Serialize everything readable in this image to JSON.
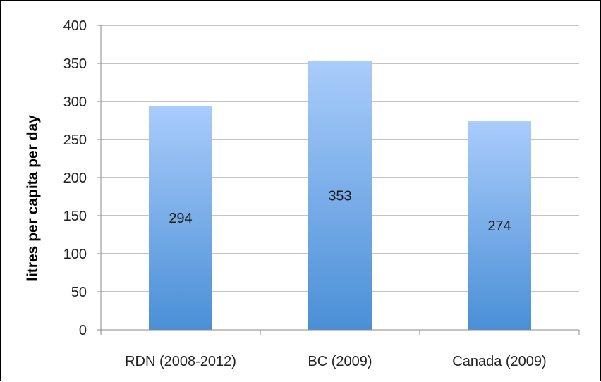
{
  "chart_data": {
    "type": "bar",
    "categories": [
      "RDN (2008-2012)",
      "BC (2009)",
      "Canada (2009)"
    ],
    "values": [
      294,
      353,
      274
    ],
    "data_labels": [
      "294",
      "353",
      "274"
    ],
    "title": "",
    "xlabel": "",
    "ylabel": "litres per capita per day",
    "ylim": [
      0,
      400
    ],
    "yticks": [
      "0",
      "50",
      "100",
      "150",
      "200",
      "250",
      "300",
      "350",
      "400"
    ],
    "grid": true,
    "legend": "none",
    "colors": {
      "bar_top": "#a9ccfb",
      "bar_bottom": "#4a8fd6",
      "grid": "#8a8a8a",
      "axis": "#8a8a8a"
    }
  }
}
